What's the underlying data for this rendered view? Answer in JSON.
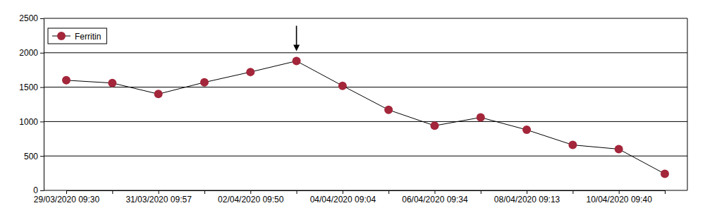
{
  "chart_data": {
    "type": "line",
    "categories": [
      "29/03/2020 09:30",
      null,
      "31/03/2020 09:57",
      null,
      "02/04/2020 09:50",
      null,
      "04/04/2020 09:04",
      null,
      "06/04/2020 09:34",
      null,
      "08/04/2020 09:13",
      null,
      "10/04/2020 09:40",
      null
    ],
    "series": [
      {
        "name": "Ferritin",
        "color": "#a3263a",
        "marker": "circle",
        "values": [
          1600,
          1560,
          1400,
          1570,
          1720,
          1880,
          1520,
          1170,
          940,
          1060,
          880,
          660,
          600,
          240
        ]
      }
    ],
    "ylim": [
      0,
      2500
    ],
    "yticks": [
      0,
      500,
      1000,
      1500,
      2000,
      2500
    ],
    "grid": true,
    "legend": "upper left"
  }
}
